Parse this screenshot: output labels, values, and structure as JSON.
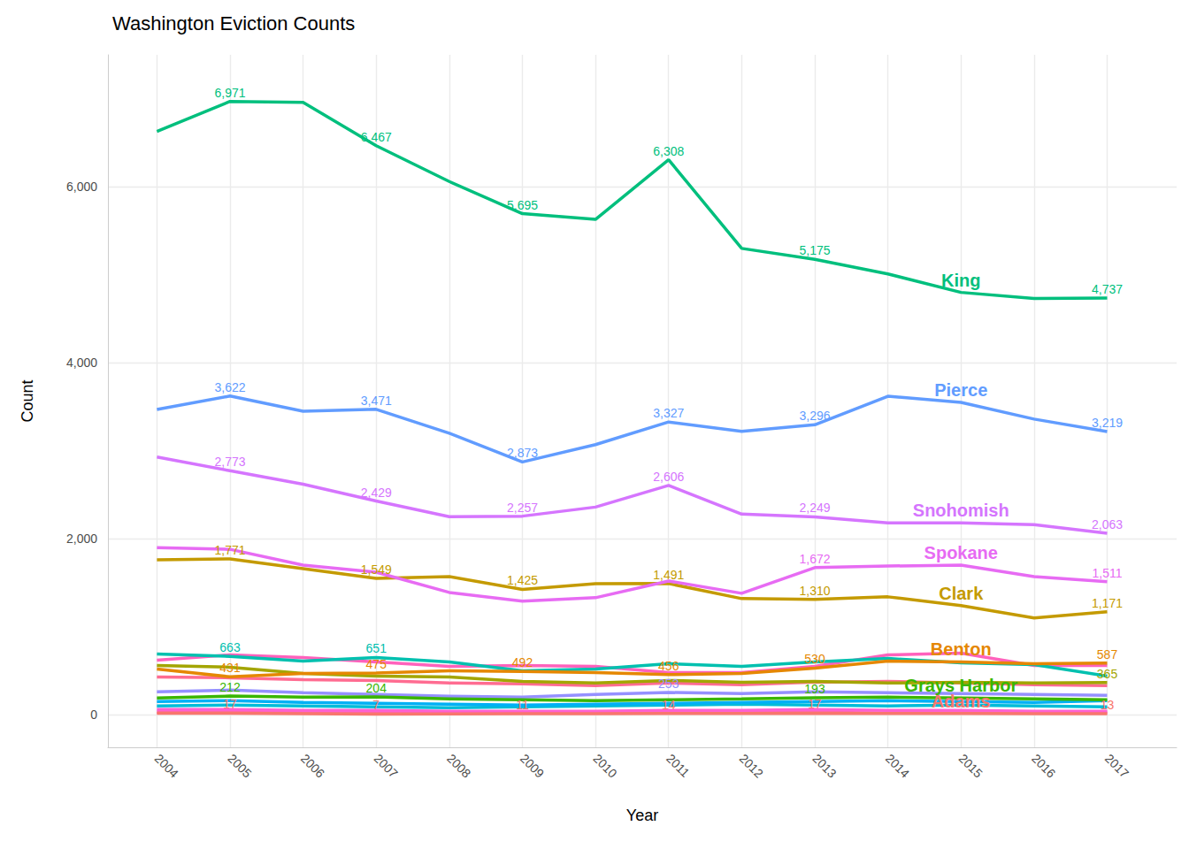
{
  "chart_data": {
    "type": "line",
    "title": "Washington Eviction Counts",
    "x_label": "Year",
    "y_label": "Count",
    "x": [
      2004,
      2005,
      2006,
      2007,
      2008,
      2009,
      2010,
      2011,
      2012,
      2013,
      2014,
      2015,
      2016,
      2017
    ],
    "xlim": [
      2003.33,
      2017.95
    ],
    "xticks": [
      2004,
      2005,
      2006,
      2007,
      2008,
      2009,
      2010,
      2011,
      2012,
      2013,
      2014,
      2015,
      2016,
      2017
    ],
    "ylim": [
      -370,
      7500
    ],
    "yticks": [
      0,
      {
        "value": 2000,
        "label": "2,000"
      },
      {
        "value": 4000,
        "label": "4,000"
      },
      {
        "value": 6000,
        "label": "6,000"
      }
    ],
    "grid": true,
    "data_labels": true,
    "series": [
      {
        "color": "#FF64B0",
        "values": [
          30,
          30,
          30,
          20,
          20,
          20,
          20,
          30,
          30,
          30,
          20,
          20,
          20,
          20
        ]
      },
      {
        "color": "#FD61D1",
        "values": [
          60,
          60,
          50,
          50,
          40,
          40,
          40,
          50,
          50,
          60,
          50,
          50,
          40,
          40
        ]
      },
      {
        "color": "#00BCD8",
        "values": [
          100,
          110,
          100,
          90,
          80,
          90,
          100,
          110,
          120,
          110,
          100,
          110,
          100,
          90
        ]
      },
      {
        "color": "#00B0F6",
        "values": [
          150,
          160,
          140,
          130,
          120,
          110,
          120,
          130,
          140,
          150,
          160,
          150,
          140,
          160
        ]
      },
      {
        "color": "#FF6C91",
        "values": [
          430,
          420,
          400,
          390,
          360,
          350,
          330,
          360,
          340,
          370,
          380,
          360,
          340,
          330
        ]
      },
      {
        "color": "#FF62BC",
        "values": [
          620,
          680,
          650,
          600,
          550,
          560,
          550,
          480,
          480,
          550,
          680,
          700,
          560,
          560
        ]
      },
      {
        "color": "#9590FF",
        "values": [
          260,
          280,
          250,
          230,
          210,
          200,
          230,
          253,
          240,
          260,
          250,
          240,
          230,
          220
        ],
        "value_labels": [
          null,
          null,
          null,
          null,
          null,
          null,
          null,
          "253",
          null,
          null,
          null,
          null,
          null,
          null
        ]
      },
      {
        "color": "#A3A500",
        "values": [
          560,
          540,
          470,
          440,
          430,
          380,
          360,
          390,
          370,
          380,
          360,
          370,
          360,
          365
        ],
        "value_labels": [
          null,
          null,
          null,
          null,
          null,
          null,
          null,
          null,
          null,
          null,
          null,
          null,
          null,
          "365"
        ]
      },
      {
        "color": "#00C0AF",
        "values": [
          690,
          663,
          610,
          651,
          600,
          500,
          520,
          580,
          550,
          600,
          640,
          590,
          570,
          440
        ],
        "value_labels": [
          null,
          "663",
          null,
          "651",
          null,
          null,
          null,
          null,
          null,
          null,
          null,
          null,
          null,
          null
        ]
      },
      {
        "name": "Adams",
        "color": "#F8766D",
        "values": [
          17,
          17,
          12,
          7,
          9,
          11,
          12,
          14,
          15,
          17,
          15,
          14,
          12,
          13
        ],
        "value_labels": [
          null,
          "17",
          null,
          "7",
          null,
          "11",
          null,
          "14",
          null,
          "17",
          null,
          null,
          null,
          "13"
        ]
      },
      {
        "name": "Grays Harbor",
        "color": "#39B600",
        "values": [
          190,
          212,
          200,
          204,
          180,
          170,
          160,
          170,
          180,
          193,
          200,
          190,
          180,
          170
        ],
        "value_labels": [
          null,
          "212",
          null,
          "204",
          null,
          null,
          null,
          null,
          null,
          "193",
          null,
          null,
          null,
          null
        ]
      },
      {
        "name": "Benton",
        "color": "#E58700",
        "values": [
          520,
          431,
          470,
          475,
          500,
          492,
          480,
          456,
          470,
          530,
          610,
          600,
          580,
          587
        ],
        "value_labels": [
          null,
          "431",
          null,
          "475",
          null,
          "492",
          null,
          "456",
          null,
          "530",
          null,
          null,
          null,
          "587"
        ]
      },
      {
        "name": "Clark",
        "color": "#C49A00",
        "values": [
          1760,
          1771,
          1660,
          1549,
          1570,
          1425,
          1490,
          1491,
          1320,
          1310,
          1340,
          1240,
          1100,
          1171
        ],
        "value_labels": [
          null,
          "1,771",
          null,
          "1,549",
          null,
          "1,425",
          null,
          "1,491",
          null,
          "1,310",
          null,
          null,
          null,
          "1,171"
        ]
      },
      {
        "name": "Spokane",
        "color": "#E76BF3",
        "values": [
          1900,
          1880,
          1700,
          1620,
          1390,
          1290,
          1330,
          1520,
          1380,
          1672,
          1690,
          1700,
          1570,
          1511
        ],
        "value_labels": [
          null,
          null,
          null,
          null,
          null,
          null,
          null,
          null,
          null,
          "1,672",
          null,
          null,
          null,
          "1,511"
        ]
      },
      {
        "name": "Snohomish",
        "color": "#D575FE",
        "values": [
          2930,
          2773,
          2620,
          2429,
          2250,
          2257,
          2360,
          2606,
          2280,
          2249,
          2180,
          2180,
          2160,
          2063
        ],
        "value_labels": [
          null,
          "2,773",
          null,
          "2,429",
          null,
          "2,257",
          null,
          "2,606",
          null,
          "2,249",
          null,
          null,
          null,
          "2,063"
        ]
      },
      {
        "name": "Pierce",
        "color": "#619CFF",
        "values": [
          3470,
          3622,
          3450,
          3471,
          3200,
          2873,
          3070,
          3327,
          3220,
          3296,
          3620,
          3550,
          3360,
          3219
        ],
        "value_labels": [
          null,
          "3,622",
          null,
          "3,471",
          null,
          "2,873",
          null,
          "3,327",
          null,
          "3,296",
          null,
          null,
          null,
          "3,219"
        ]
      },
      {
        "name": "King",
        "color": "#00BF7D",
        "values": [
          6630,
          6971,
          6960,
          6467,
          6060,
          5695,
          5630,
          6308,
          5300,
          5175,
          5010,
          4800,
          4730,
          4737
        ],
        "value_labels": [
          null,
          "6,971",
          null,
          "6,467",
          null,
          "5,695",
          null,
          "6,308",
          null,
          "5,175",
          null,
          null,
          null,
          "4,737"
        ]
      }
    ]
  }
}
